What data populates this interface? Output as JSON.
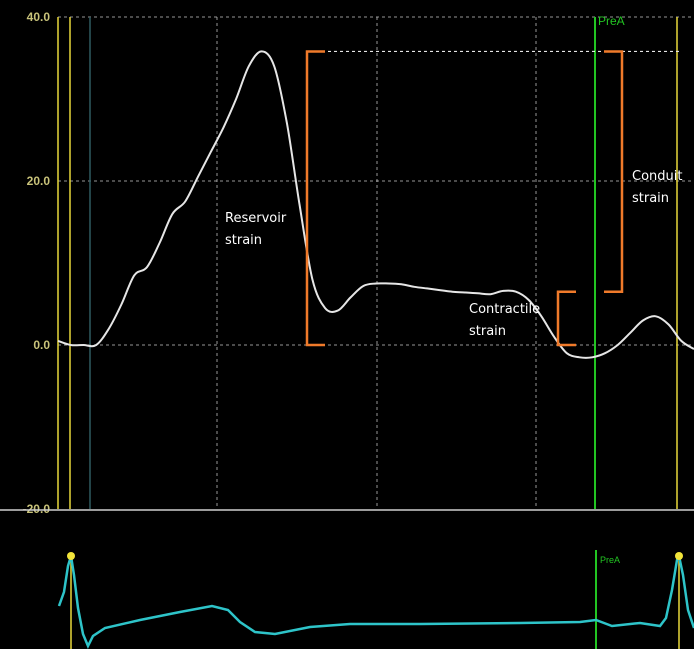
{
  "colors": {
    "background": "#000000",
    "grid": "#c8c8c8",
    "tick_label": "#c9c37a",
    "strain_curve": "#e6e6e6",
    "ecg_curve": "#2ec4c9",
    "bracket": "#f07a2a",
    "marker_yellow": "#e8d83a",
    "marker_dark": "#2f5a60",
    "prea": "#22c522",
    "ecg_dot": "#f2e43a",
    "separator": "#cfcfcf"
  },
  "chart_data": {
    "type": "line",
    "y_ticks": [
      "40.0",
      "20.0",
      "0.0",
      "-20.0"
    ],
    "ylim": [
      -20,
      40
    ],
    "grid": true,
    "series": [
      {
        "x": [
          0,
          2,
          4,
          6,
          8,
          10,
          12,
          14,
          16,
          18,
          20,
          22,
          24,
          26,
          28,
          30,
          32,
          34,
          36,
          38,
          40,
          42,
          44,
          46,
          48,
          50,
          52,
          54,
          56,
          58,
          60,
          62,
          64,
          66,
          68,
          70,
          72,
          74,
          76,
          78,
          80,
          82,
          84,
          86,
          88,
          90,
          92,
          94,
          96,
          98,
          100
        ],
        "values": [
          0.5,
          0,
          0,
          0,
          2,
          5,
          8.5,
          9.5,
          12.5,
          16,
          17.5,
          20.5,
          23.5,
          26.5,
          30,
          34,
          35.8,
          34,
          27,
          17,
          8,
          4.5,
          4.2,
          5.8,
          7.2,
          7.5,
          7.5,
          7.4,
          7.1,
          6.9,
          6.7,
          6.5,
          6.4,
          6.3,
          6.2,
          6.6,
          6.5,
          5.5,
          3.5,
          1,
          -1,
          -1.5,
          -1.5,
          -1,
          0,
          1.5,
          3,
          3.5,
          2.5,
          0.5,
          -0.5
        ]
      }
    ],
    "annotations": [
      {
        "label_lines": [
          "Reservoir",
          "strain"
        ],
        "from": 0,
        "to": 35.8
      },
      {
        "label_lines": [
          "Contractile",
          "strain"
        ],
        "from": 0,
        "to": 6.5
      },
      {
        "label_lines": [
          "Conduit",
          "strain"
        ],
        "from": 6.5,
        "to": 35.8
      }
    ],
    "markers": [
      {
        "label": "PreA"
      }
    ]
  },
  "ecg": {
    "marker_label": "PreA"
  }
}
